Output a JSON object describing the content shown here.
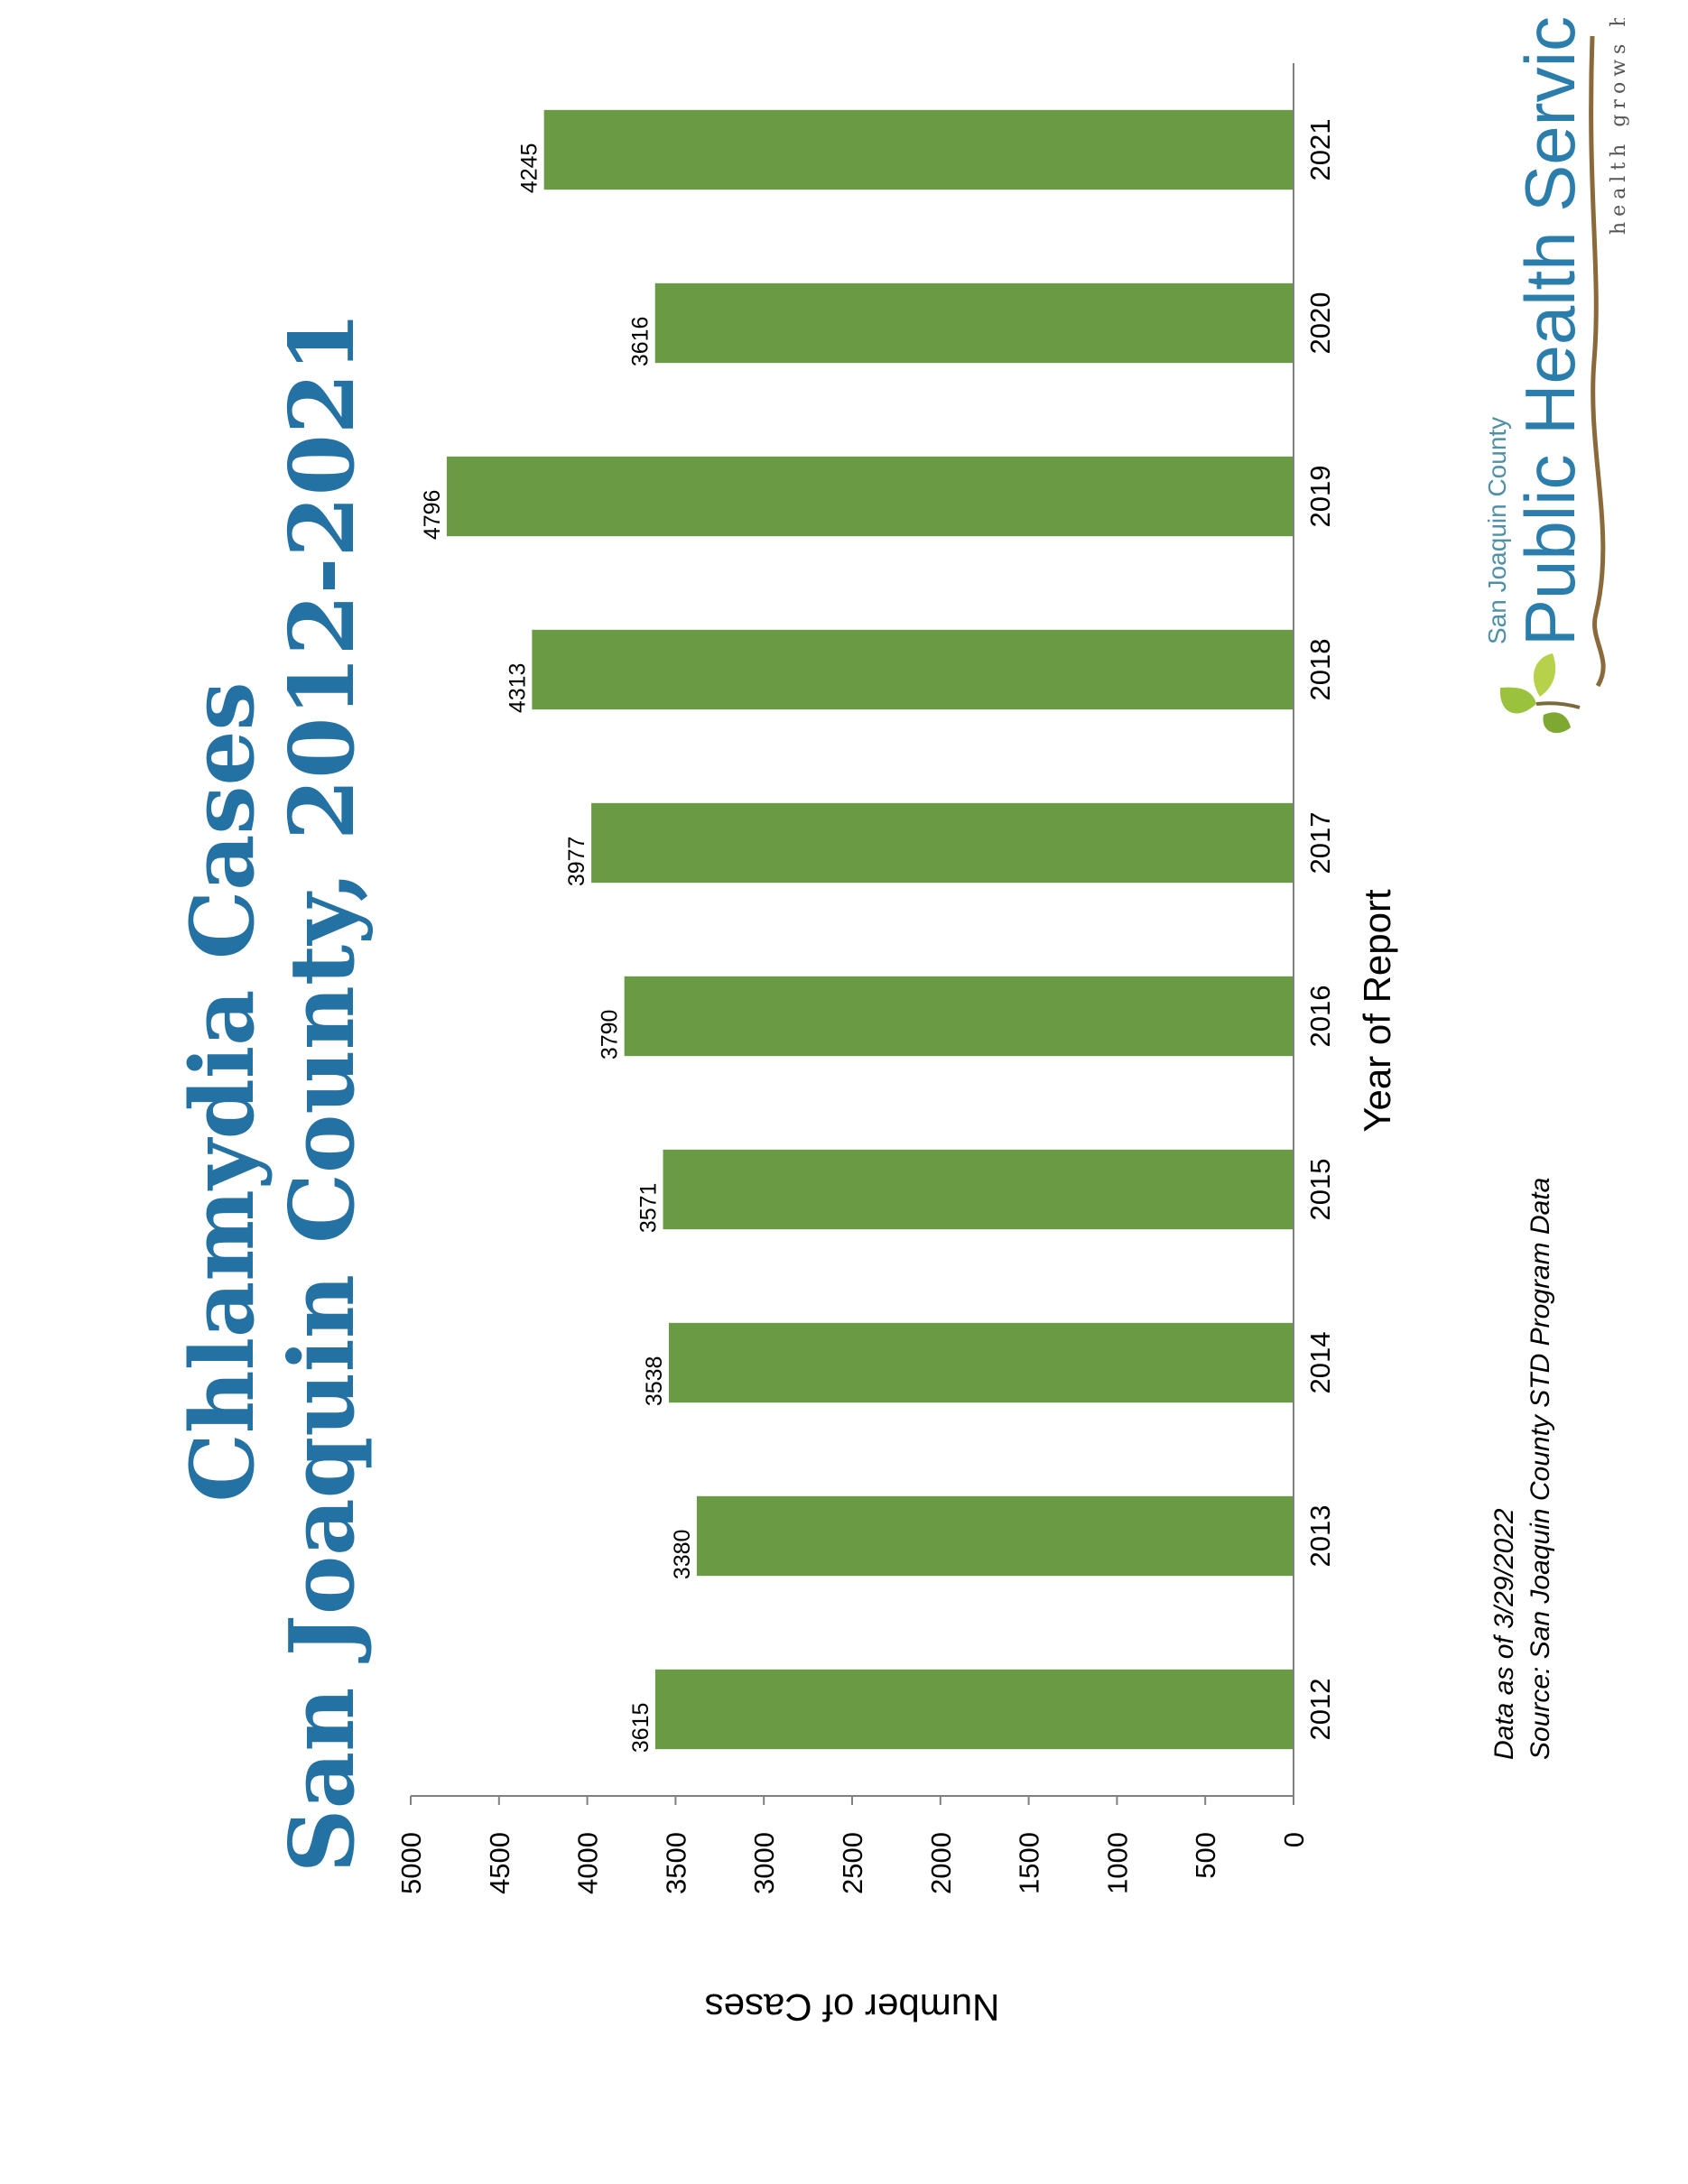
{
  "title": {
    "line1": "Chlamydia Cases",
    "line2": "San Joaquin County, 2012-2021"
  },
  "footer": {
    "data_as_of": "Data as of 3/29/2022",
    "source": "Source:  San Joaquin County STD Program Data"
  },
  "logo": {
    "line1": "San Joaquin County",
    "line2": "Public Health Services",
    "tagline": "health grows here",
    "icon": "leaf-sprout-icon"
  },
  "colors": {
    "bar": "#6a9a43",
    "title": "#2471a3",
    "axis": "#808080"
  },
  "chart_data": {
    "type": "bar",
    "orientation": "vertical",
    "categories": [
      "2012",
      "2013",
      "2014",
      "2015",
      "2016",
      "2017",
      "2018",
      "2019",
      "2020",
      "2021"
    ],
    "values": [
      3615,
      3380,
      3538,
      3571,
      3790,
      3977,
      4313,
      4796,
      3616,
      4245
    ],
    "data_labels": [
      "3615",
      "3380",
      "3538",
      "3571",
      "3790",
      "3977",
      "4313",
      "4796",
      "3616",
      "4245"
    ],
    "xlabel": "Year of Report",
    "ylabel": "Number of Cases",
    "ylim": [
      0,
      5000
    ],
    "yticks": [
      "0",
      "500",
      "1000",
      "1500",
      "2000",
      "2500",
      "3000",
      "3500",
      "4000",
      "4500",
      "5000"
    ],
    "grid": false,
    "legend": "none"
  }
}
